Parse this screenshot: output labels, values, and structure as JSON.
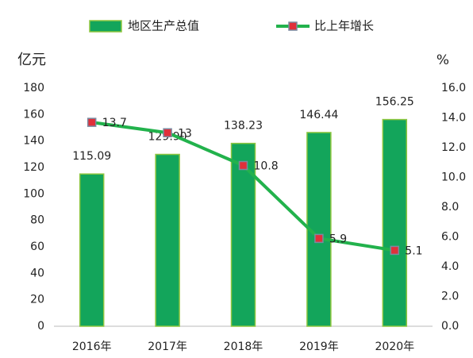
{
  "chart_data": {
    "type": "bar",
    "categories": [
      "2016年",
      "2017年",
      "2018年",
      "2019年",
      "2020年"
    ],
    "series": [
      {
        "name": "地区生产总值",
        "type": "bar",
        "color": "#13a55b",
        "border_color": "#8dc63f",
        "values": [
          115.09,
          129.9,
          138.23,
          146.44,
          156.25
        ],
        "value_labels": [
          "115.09",
          "129.90",
          "138.23",
          "146.44",
          "156.25"
        ]
      },
      {
        "name": "比上年增长",
        "type": "line",
        "axis": "y2",
        "color": "#22b24c",
        "marker_color": "#e0303a",
        "values": [
          13.7,
          13,
          10.8,
          5.9,
          5.1
        ]
      }
    ],
    "y_label": "亿元",
    "y2_label": "%",
    "ylim": [
      0,
      180
    ],
    "yticks": [
      0,
      20,
      40,
      60,
      80,
      100,
      120,
      140,
      160,
      180
    ],
    "y2lim": [
      0,
      16
    ],
    "y2ticks": [
      {
        "value": 0,
        "label": "0.0"
      },
      {
        "value": 2,
        "label": "2.0"
      },
      {
        "value": 4,
        "label": "4.0"
      },
      {
        "value": 6,
        "label": "6.0"
      },
      {
        "value": 8,
        "label": "8.0"
      },
      {
        "value": 10,
        "label": "10.0"
      },
      {
        "value": 12,
        "label": "12.0"
      },
      {
        "value": 14,
        "label": "14.0"
      },
      {
        "value": 16,
        "label": "16.0"
      }
    ],
    "legend": "top",
    "grid": false
  }
}
